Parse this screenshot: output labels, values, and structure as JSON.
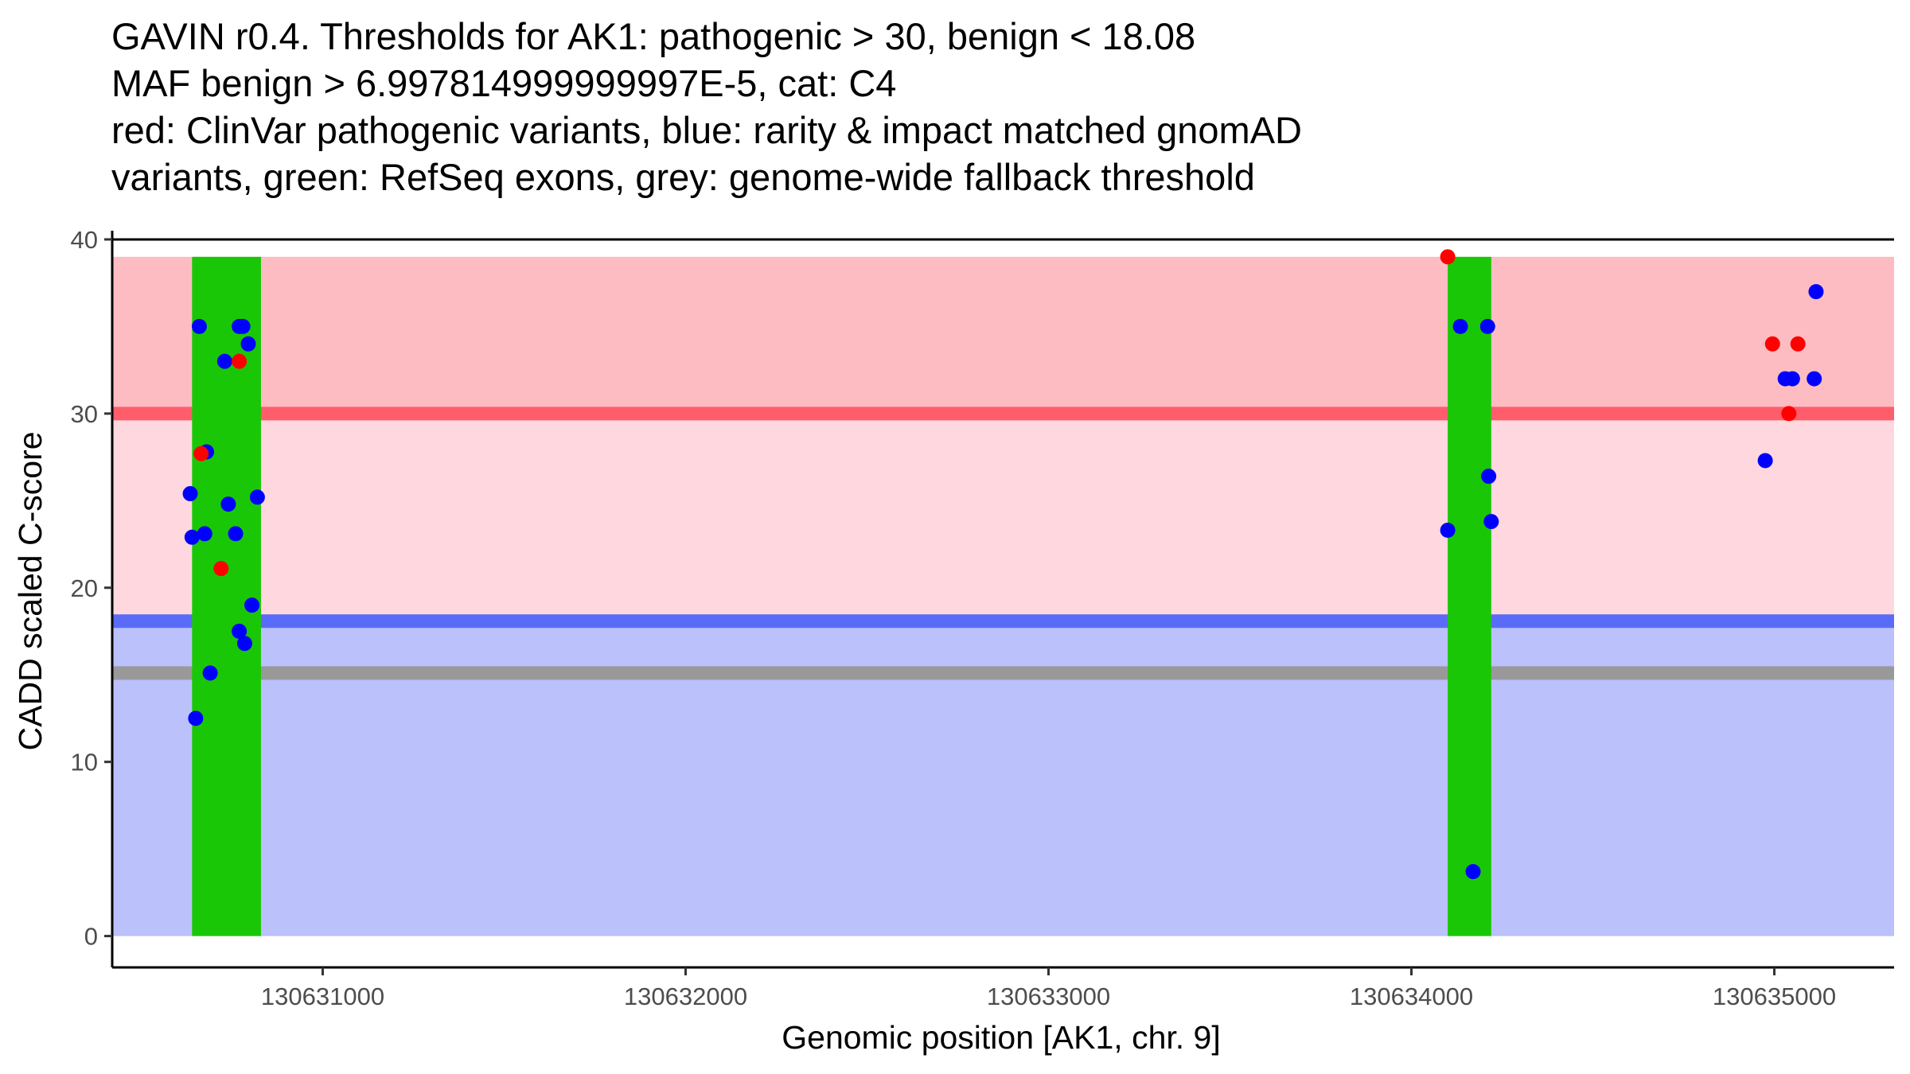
{
  "chart_data": {
    "type": "scatter",
    "title_lines": [
      "GAVIN r0.4. Thresholds for AK1: pathogenic > 30, benign < 18.08",
      "MAF benign > 6.997814999999997E-5, cat: C4",
      "red: ClinVar pathogenic variants, blue: rarity & impact matched gnomAD",
      "variants, green: RefSeq exons, grey: genome-wide fallback threshold"
    ],
    "xlabel": "Genomic position [AK1, chr. 9]",
    "ylabel": "CADD scaled C-score",
    "xlim": [
      130630420,
      130635330
    ],
    "ylim": [
      -1.8,
      40.5
    ],
    "xticks": [
      130631000,
      130632000,
      130633000,
      130634000,
      130635000
    ],
    "xtick_labels": [
      "130631000",
      "130632000",
      "130633000",
      "130634000",
      "130635000"
    ],
    "yticks": [
      0,
      10,
      20,
      30,
      40
    ],
    "ytick_labels": [
      "0",
      "10",
      "20",
      "30",
      "40"
    ],
    "regions": {
      "pathogenic_band": {
        "y0": 30,
        "y1": 39,
        "color": "#fcbcc2"
      },
      "intermediate_band": {
        "y0": 18.08,
        "y1": 30,
        "color": "#ffd7de"
      },
      "benign_band": {
        "y0": 0,
        "y1": 18.08,
        "color": "#bac1fb"
      }
    },
    "threshold_lines": [
      {
        "name": "pathogenic threshold",
        "y": 30,
        "color": "#ff5d6b"
      },
      {
        "name": "benign threshold",
        "y": 18.08,
        "color": "#5a6cf7"
      },
      {
        "name": "genome-wide fallback threshold",
        "y": 15.1,
        "color": "#999999"
      }
    ],
    "exons": [
      {
        "x0": 130630640,
        "x1": 130630830,
        "y0": 0,
        "y1": 39,
        "color": "#1ac707"
      },
      {
        "x0": 130634100,
        "x1": 130634220,
        "y0": 0,
        "y1": 39,
        "color": "#1ac707"
      }
    ],
    "series": [
      {
        "name": "rarity & impact matched gnomAD variants",
        "color": "#0000ff",
        "points": [
          [
            130630660,
            35
          ],
          [
            130630635,
            25.4
          ],
          [
            130630640,
            22.9
          ],
          [
            130630675,
            23.1
          ],
          [
            130630650,
            12.5
          ],
          [
            130630680,
            27.8
          ],
          [
            130630690,
            15.1
          ],
          [
            130630730,
            33
          ],
          [
            130630740,
            24.8
          ],
          [
            130630760,
            23.1
          ],
          [
            130630770,
            35
          ],
          [
            130630780,
            35
          ],
          [
            130630795,
            34
          ],
          [
            130630770,
            17.5
          ],
          [
            130630785,
            16.8
          ],
          [
            130630805,
            19
          ],
          [
            130630820,
            25.2
          ],
          [
            130634100,
            23.3
          ],
          [
            130634135,
            35
          ],
          [
            130634170,
            3.7
          ],
          [
            130634210,
            35
          ],
          [
            130634213,
            26.4
          ],
          [
            130634220,
            23.8
          ],
          [
            130634975,
            27.3
          ],
          [
            130635030,
            32
          ],
          [
            130635050,
            32
          ],
          [
            130635110,
            32
          ],
          [
            130635115,
            37
          ]
        ]
      },
      {
        "name": "ClinVar pathogenic variants",
        "color": "#ff0000",
        "points": [
          [
            130630665,
            27.7
          ],
          [
            130630720,
            21.1
          ],
          [
            130630770,
            33
          ],
          [
            130634100,
            39
          ],
          [
            130634995,
            34
          ],
          [
            130635040,
            30
          ],
          [
            130635065,
            34
          ]
        ]
      }
    ]
  }
}
